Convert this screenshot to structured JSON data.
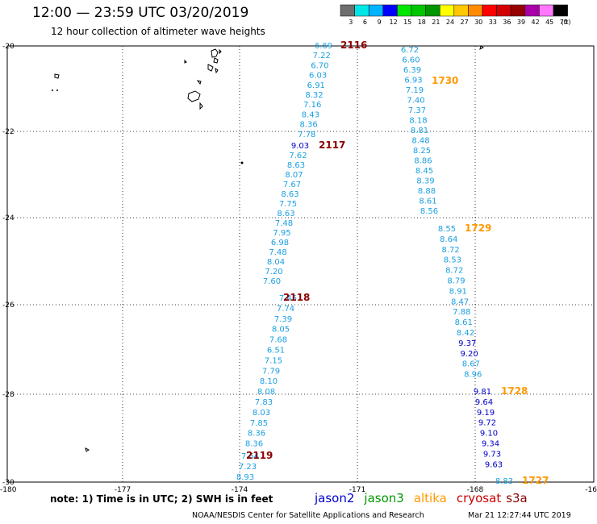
{
  "title": "12:00 — 23:59 UTC 03/20/2019",
  "subtitle": "12 hour collection of altimeter wave heights",
  "colorbar": {
    "labels": [
      "3",
      "6",
      "9",
      "12",
      "15",
      "18",
      "21",
      "24",
      "27",
      "30",
      "33",
      "36",
      "39",
      "42",
      "45",
      "70"
    ],
    "unit": "(ft)",
    "colors": [
      "#6e6e6e",
      "#00e6e6",
      "#00b4ff",
      "#0000ff",
      "#00e600",
      "#00c800",
      "#009600",
      "#ffff00",
      "#ffc800",
      "#ff8c00",
      "#ff0000",
      "#d20000",
      "#960000",
      "#aa00aa",
      "#ff78ff",
      "#000000"
    ]
  },
  "axes": {
    "lat_labels": [
      "-20",
      "-22",
      "-24",
      "-26",
      "-28",
      "-30"
    ],
    "lon_labels": [
      "-180",
      "-177",
      "-174",
      "-171",
      "-168",
      "-16"
    ]
  },
  "tracks": [
    {
      "satellite": "cryosat s3a",
      "time": "2116",
      "color": "#8b0000",
      "values": [
        "6.69",
        "7.22",
        "6.70",
        "6.03",
        "6.91",
        "8.32",
        "7.16",
        "8.43",
        "8.36",
        "7.78"
      ]
    },
    {
      "satellite": "cryosat s3a",
      "time": "2117",
      "color": "#8b0000",
      "values": [
        "9.03",
        "7.62",
        "8.63",
        "8.07",
        "7.67",
        "8.63",
        "7.75",
        "8.63",
        "7.48",
        "7.95",
        "6.98",
        "7.48",
        "8.04",
        "7.20",
        "7.60"
      ]
    },
    {
      "satellite": "cryosat s3a",
      "time": "2118",
      "color": "#8b0000",
      "values": [
        "7.45",
        "7.74",
        "7.39",
        "8.05",
        "7.68",
        "6.51",
        "7.15",
        "7.79",
        "8.10",
        "8.08",
        "7.83",
        "8.03",
        "7.85",
        "8.36",
        "8.36"
      ]
    },
    {
      "satellite": "cryosat s3a",
      "time": "2119",
      "color": "#8b0000",
      "values": [
        "7.64",
        "7.23",
        "8.93"
      ]
    },
    {
      "satellite": "altika",
      "time": "1730",
      "color": "#ff9900",
      "values": [
        "6.72",
        "6.60",
        "6.39",
        "6.93",
        "7.19",
        "7.40",
        "7.37",
        "8.18",
        "8.81",
        "8.48",
        "8.25",
        "8.86",
        "8.45",
        "8.39",
        "8.88",
        "8.61",
        "8.56"
      ]
    },
    {
      "satellite": "altika",
      "time": "1729",
      "color": "#ff9900",
      "values": [
        "8.55",
        "8.64",
        "8.72",
        "8.53",
        "8.72",
        "8.79",
        "8.91",
        "8.47",
        "7.88",
        "8.61",
        "8.42",
        "9.37",
        "9.20",
        "8.67",
        "8.96"
      ]
    },
    {
      "satellite": "altika",
      "time": "1728",
      "color": "#ff9900",
      "values": [
        "9.81",
        "9.64",
        "9.19",
        "9.72",
        "9.10",
        "9.34",
        "9.73",
        "9.63"
      ]
    },
    {
      "satellite": "altika",
      "time": "1727",
      "color": "#ff9900",
      "values": [
        "8.83"
      ]
    }
  ],
  "notes": {
    "text": "note:  1) Time is in UTC; 2) SWH is in feet",
    "satellites": [
      {
        "name": "jason2",
        "color": "#0000cc"
      },
      {
        "name": "jason3",
        "color": "#009900"
      },
      {
        "name": "altika",
        "color": "#ff9900"
      },
      {
        "name": "cryosat",
        "color": "#cc0000"
      },
      {
        "name": "s3a",
        "color": "#8b0000"
      }
    ]
  },
  "credit_left": "NOAA/NESDIS Center for Satellite Applications and Research",
  "credit_right": "Mar 21 12:27:44 UTC 2019"
}
